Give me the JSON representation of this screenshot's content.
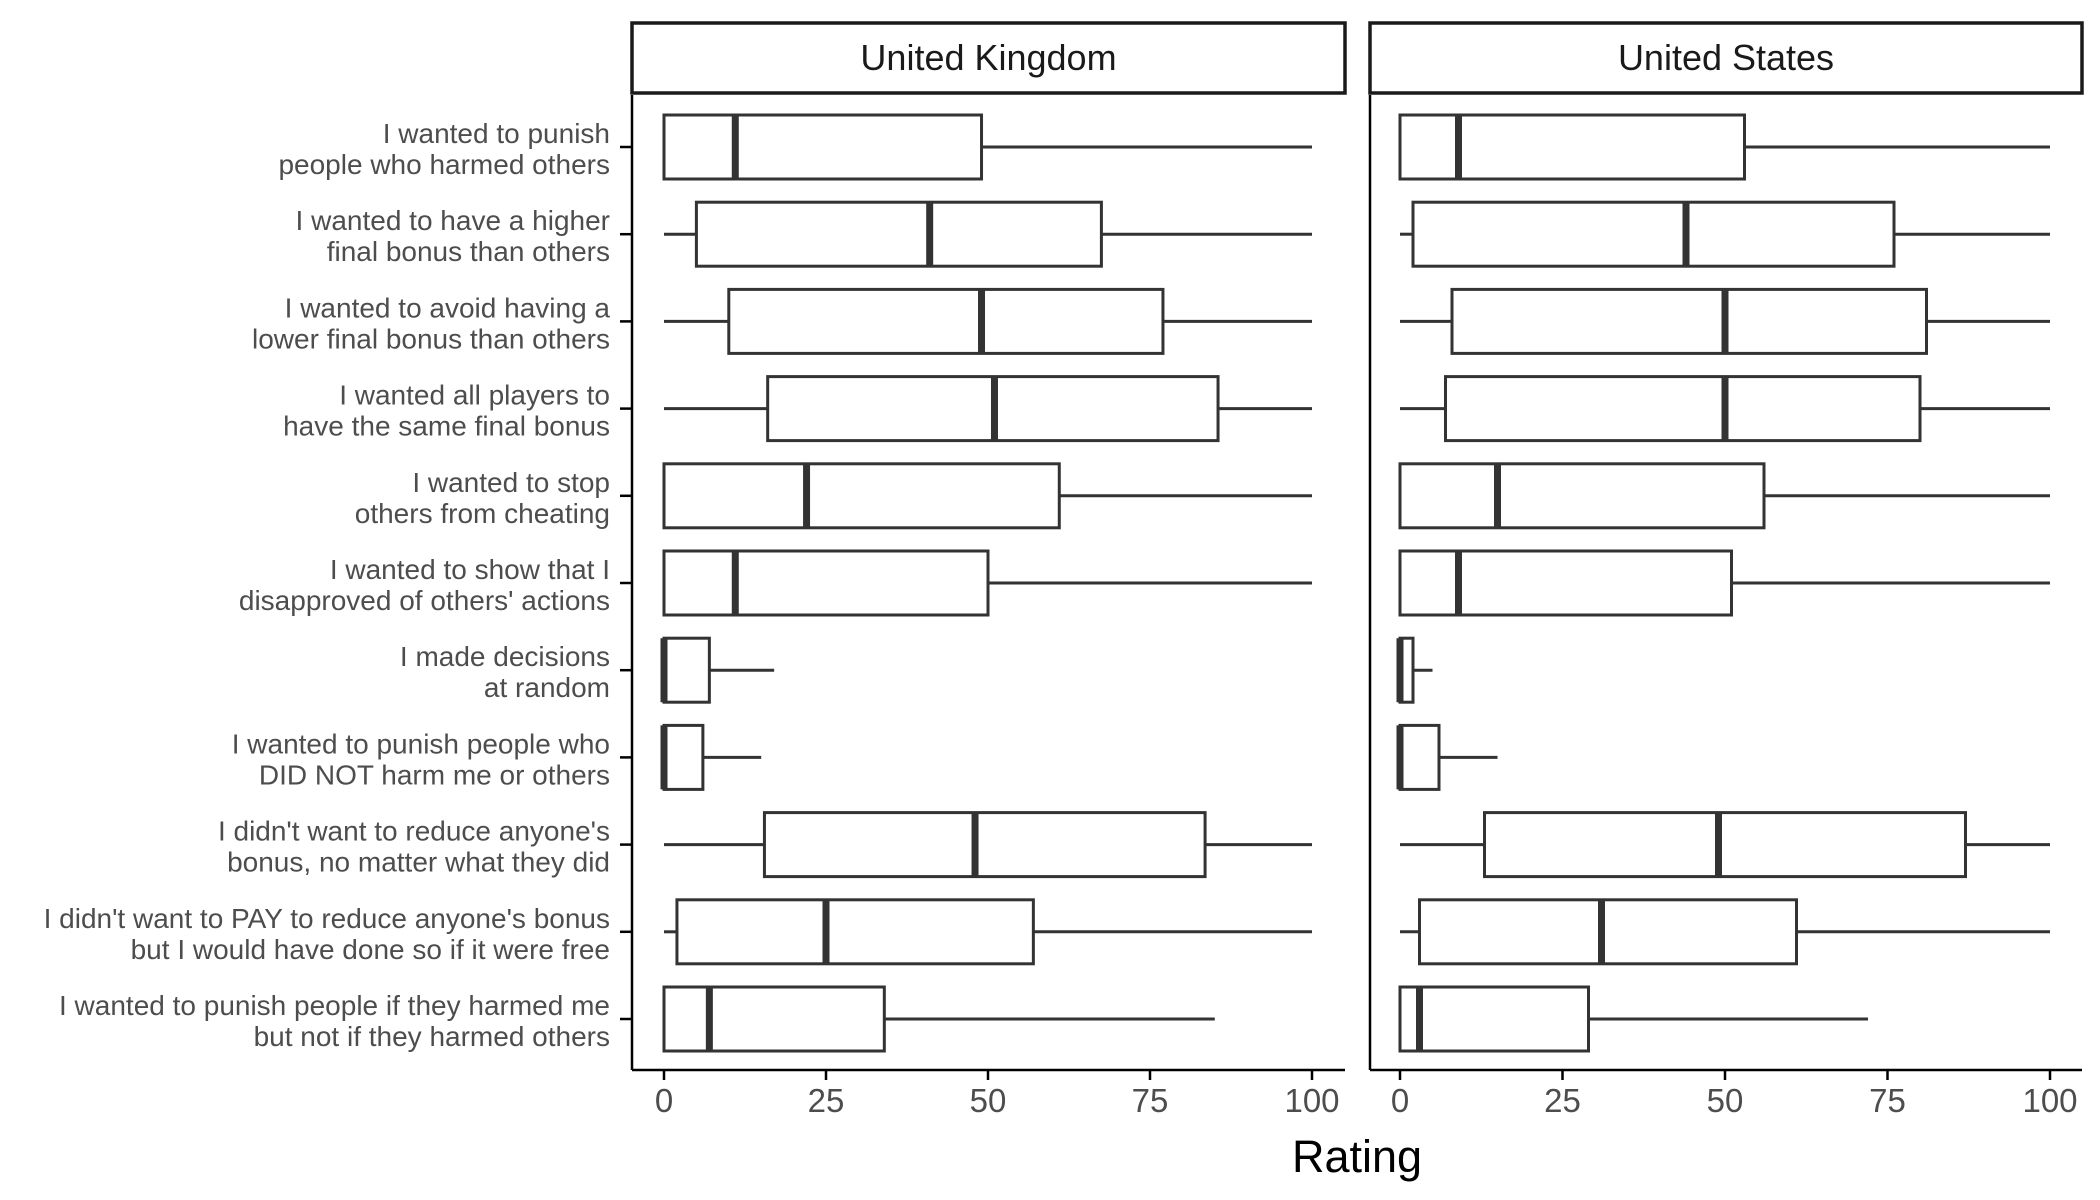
{
  "chart_data": {
    "type": "boxplot",
    "xlabel": "Rating",
    "xlim": [
      0,
      100
    ],
    "xticks": [
      0,
      25,
      50,
      75,
      100
    ],
    "categories": [
      [
        "I wanted to punish",
        "people who harmed others"
      ],
      [
        "I wanted to have a higher",
        "final bonus than others"
      ],
      [
        "I wanted to avoid having a",
        "lower final bonus than others"
      ],
      [
        "I wanted all players to",
        "have the same final bonus"
      ],
      [
        "I wanted to stop",
        "others from cheating"
      ],
      [
        "I wanted to show that I",
        "disapproved of others' actions"
      ],
      [
        "I made decisions",
        "at random"
      ],
      [
        "I wanted to punish people who",
        "DID NOT harm me or others"
      ],
      [
        "I didn't want to reduce anyone's",
        "bonus, no matter what they did"
      ],
      [
        "I didn't want to PAY to reduce anyone's bonus",
        "but I would have done so if it were free"
      ],
      [
        "I wanted to punish people if they harmed me",
        "but not if they harmed others"
      ]
    ],
    "panels": [
      {
        "name": "United Kingdom",
        "boxes": [
          {
            "min": 0,
            "q1": 0,
            "median": 11,
            "q3": 49,
            "max": 100
          },
          {
            "min": 0,
            "q1": 5,
            "median": 41,
            "q3": 67.5,
            "max": 100
          },
          {
            "min": 0,
            "q1": 10,
            "median": 49,
            "q3": 77,
            "max": 100
          },
          {
            "min": 0,
            "q1": 16,
            "median": 51,
            "q3": 85.5,
            "max": 100
          },
          {
            "min": 0,
            "q1": 0,
            "median": 22,
            "q3": 61,
            "max": 100
          },
          {
            "min": 0,
            "q1": 0,
            "median": 11,
            "q3": 50,
            "max": 100
          },
          {
            "min": 0,
            "q1": 0,
            "median": 0,
            "q3": 7,
            "max": 17
          },
          {
            "min": 0,
            "q1": 0,
            "median": 0,
            "q3": 6,
            "max": 15
          },
          {
            "min": 0,
            "q1": 15.5,
            "median": 48,
            "q3": 83.5,
            "max": 100
          },
          {
            "min": 0,
            "q1": 2,
            "median": 25,
            "q3": 57,
            "max": 100
          },
          {
            "min": 0,
            "q1": 0,
            "median": 7,
            "q3": 34,
            "max": 85
          }
        ]
      },
      {
        "name": "United States",
        "boxes": [
          {
            "min": 0,
            "q1": 0,
            "median": 9,
            "q3": 53,
            "max": 100
          },
          {
            "min": 0,
            "q1": 2,
            "median": 44,
            "q3": 76,
            "max": 100
          },
          {
            "min": 0,
            "q1": 8,
            "median": 50,
            "q3": 81,
            "max": 100
          },
          {
            "min": 0,
            "q1": 7,
            "median": 50,
            "q3": 80,
            "max": 100
          },
          {
            "min": 0,
            "q1": 0,
            "median": 15,
            "q3": 56,
            "max": 100
          },
          {
            "min": 0,
            "q1": 0,
            "median": 9,
            "q3": 51,
            "max": 100
          },
          {
            "min": 0,
            "q1": 0,
            "median": 0,
            "q3": 2,
            "max": 5
          },
          {
            "min": 0,
            "q1": 0,
            "median": 0,
            "q3": 6,
            "max": 15
          },
          {
            "min": 0,
            "q1": 13,
            "median": 49,
            "q3": 87,
            "max": 100
          },
          {
            "min": 0,
            "q1": 3,
            "median": 31,
            "q3": 61,
            "max": 100
          },
          {
            "min": 0,
            "q1": 0,
            "median": 3,
            "q3": 29,
            "max": 72
          }
        ]
      }
    ],
    "colors": {
      "box_fill": "#ffffff",
      "box_stroke": "#333333",
      "axis": "#000000",
      "text": "#4d4d4d"
    },
    "grid": false
  }
}
